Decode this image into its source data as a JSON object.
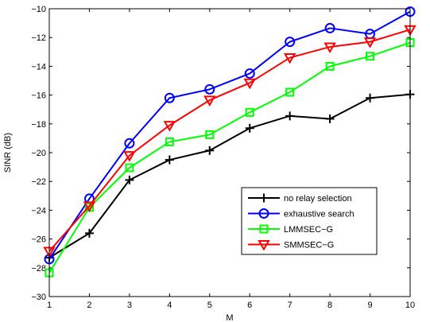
{
  "chart_data": {
    "type": "line",
    "title": "",
    "xlabel": "M",
    "ylabel": "SINR (dB)",
    "xlim": [
      1,
      10
    ],
    "ylim": [
      -30,
      -10
    ],
    "x": [
      1,
      2,
      3,
      4,
      5,
      6,
      7,
      8,
      9,
      10
    ],
    "xticks": [
      "1",
      "2",
      "3",
      "4",
      "5",
      "6",
      "7",
      "8",
      "9",
      "10"
    ],
    "yticks": [
      "−30",
      "−28",
      "−26",
      "−24",
      "−22",
      "−20",
      "−18",
      "−16",
      "−14",
      "−12",
      "−10"
    ],
    "ytick_values": [
      -30,
      -28,
      -26,
      -24,
      -22,
      -20,
      -18,
      -16,
      -14,
      -12,
      -10
    ],
    "grid": false,
    "legend_position": "bottom-right",
    "series": [
      {
        "name": "no relay selection",
        "color": "#000000",
        "marker": "plus",
        "values": [
          -27.3,
          -25.6,
          -21.9,
          -20.5,
          -19.85,
          -18.3,
          -17.45,
          -17.65,
          -16.2,
          -15.95
        ]
      },
      {
        "name": "exhaustive search",
        "color": "#0000ff",
        "marker": "circle",
        "values": [
          -27.4,
          -23.2,
          -19.35,
          -16.2,
          -15.6,
          -14.5,
          -12.3,
          -11.35,
          -11.75,
          -10.2
        ]
      },
      {
        "name": "LMMSEC−G",
        "color": "#00ff00",
        "marker": "square",
        "values": [
          -28.35,
          -23.8,
          -21.05,
          -19.25,
          -18.75,
          -17.2,
          -15.8,
          -14.0,
          -13.3,
          -12.35
        ]
      },
      {
        "name": "SMMSEC−G",
        "color": "#ff0000",
        "marker": "triangle-down",
        "values": [
          -26.85,
          -23.7,
          -20.2,
          -18.1,
          -16.35,
          -15.15,
          -13.4,
          -12.65,
          -12.3,
          -11.45
        ]
      }
    ]
  }
}
